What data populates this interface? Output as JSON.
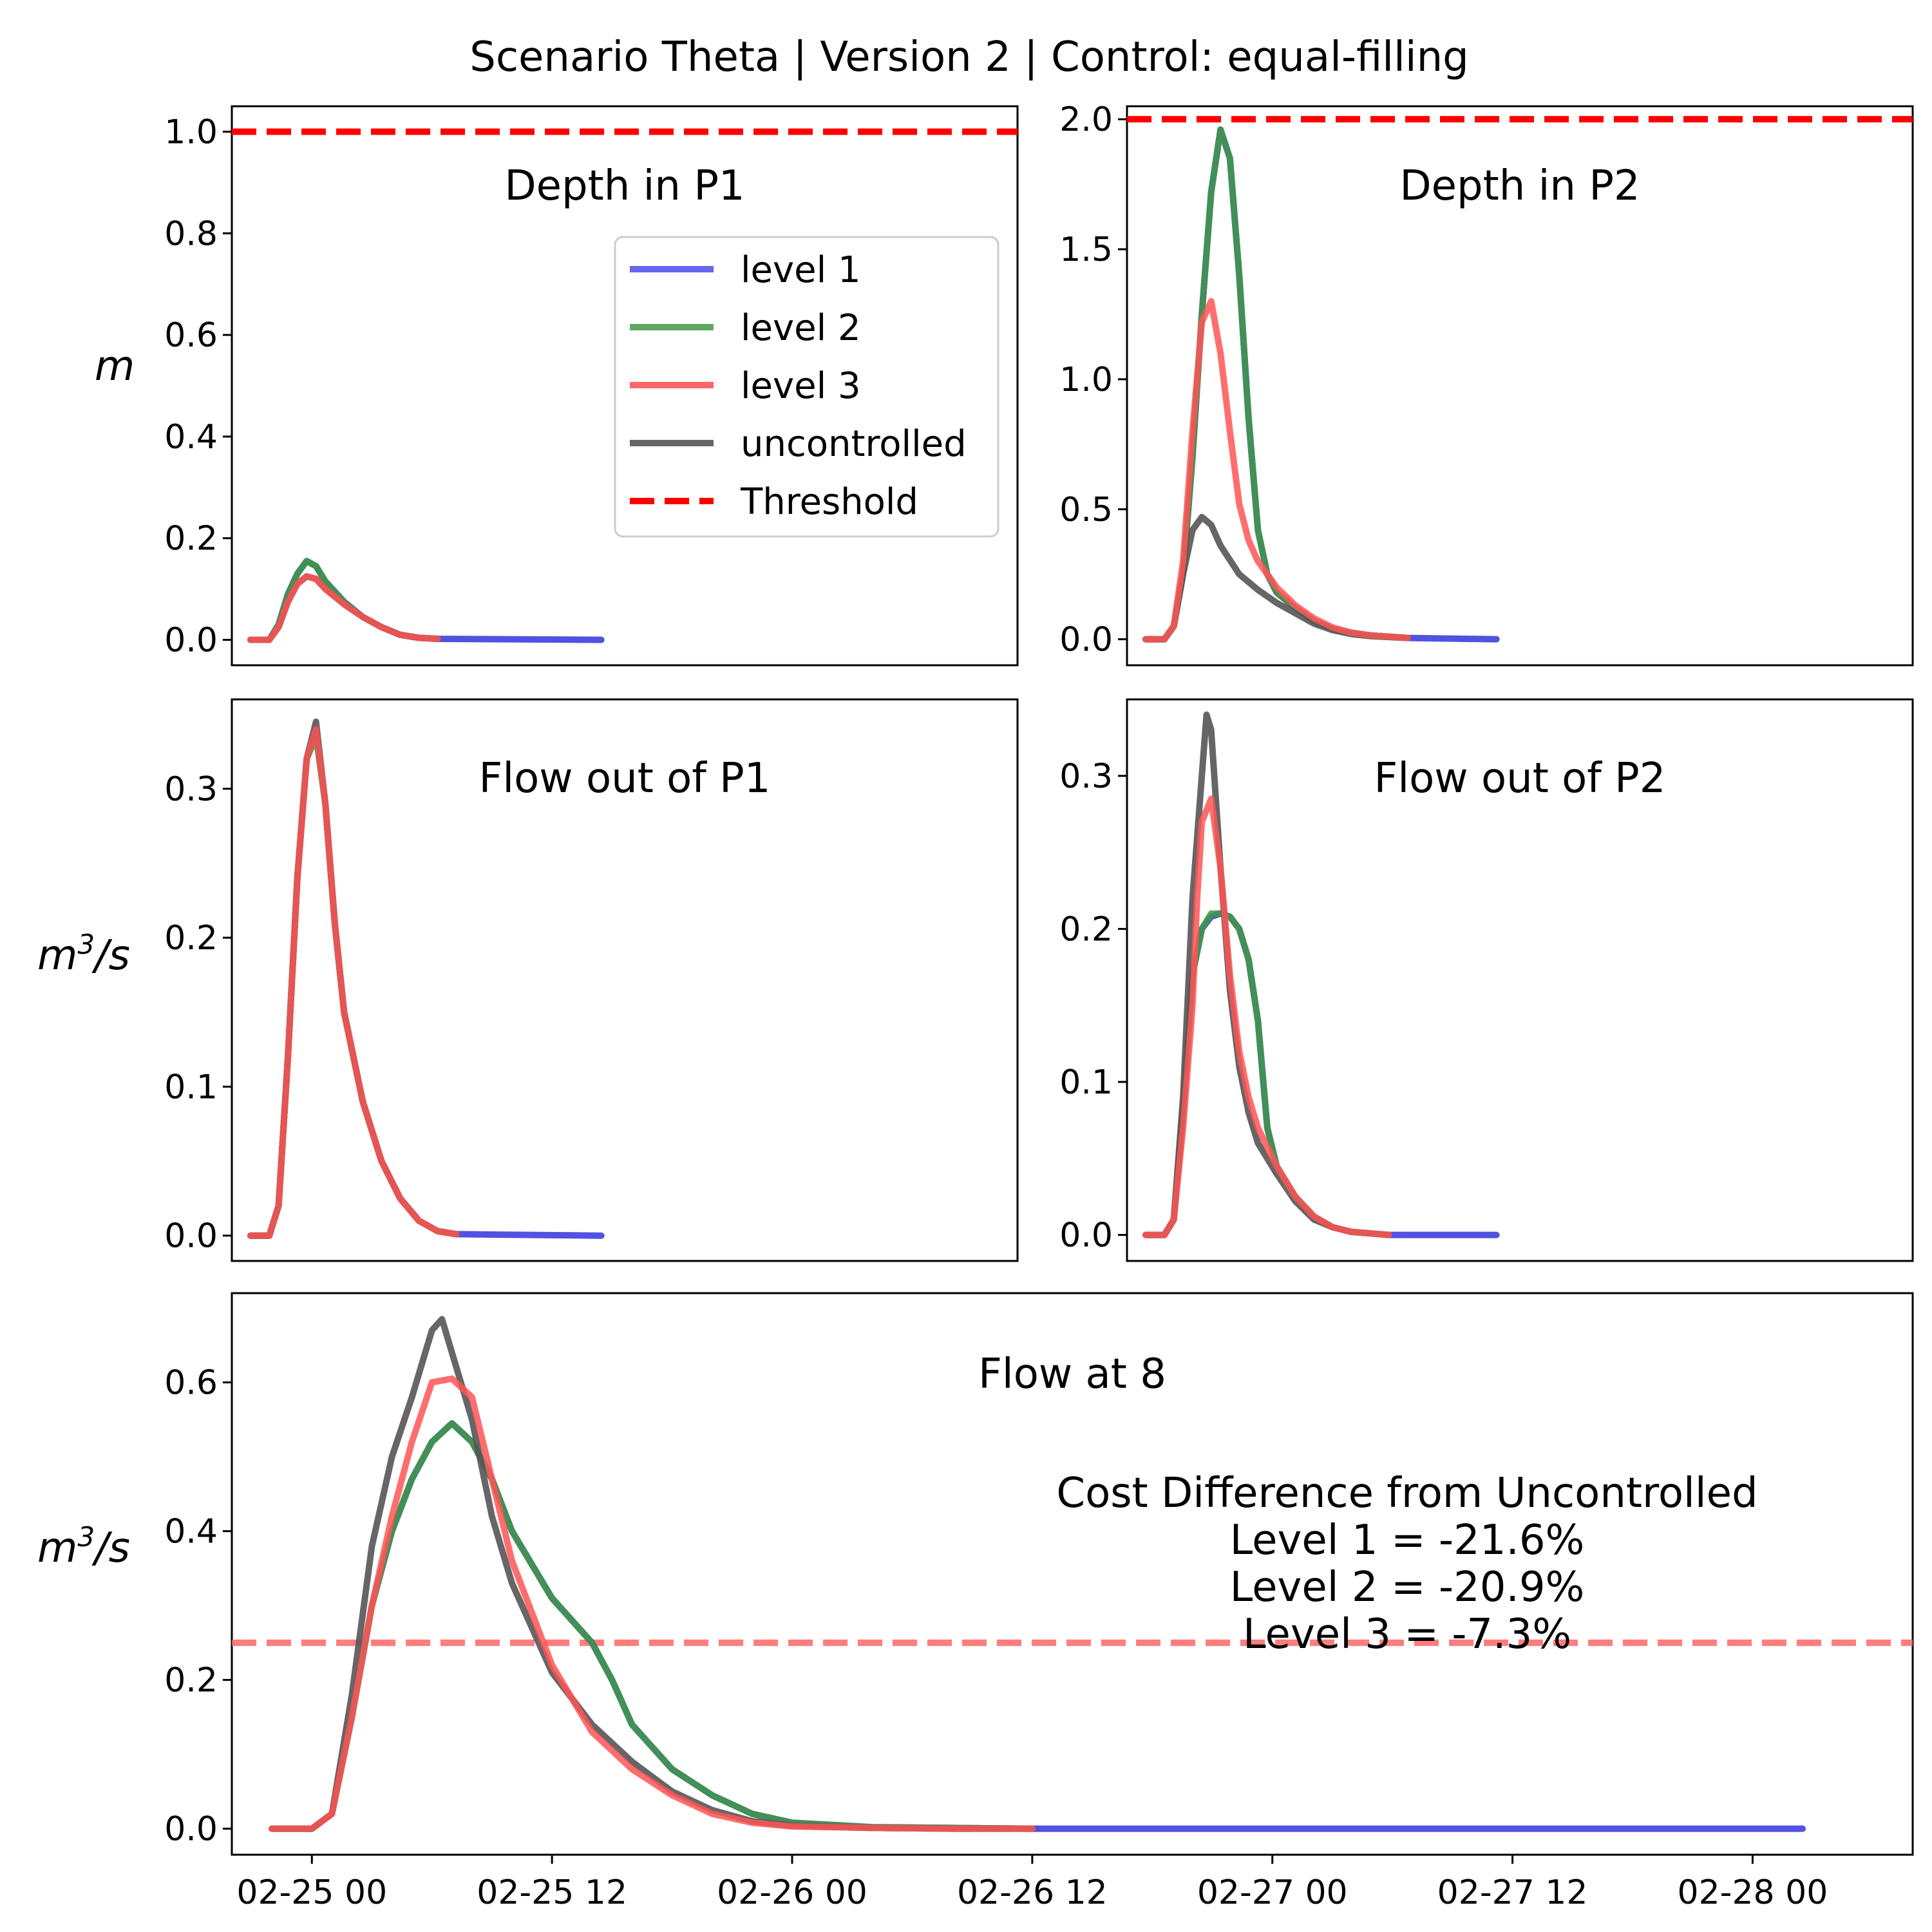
{
  "figure_title": "Scenario Theta | Version 2 | Control: equal-filling",
  "x_axis": {
    "ticks": [
      {
        "t": 0,
        "label": "02-25 00"
      },
      {
        "t": 12,
        "label": "02-25 12"
      },
      {
        "t": 24,
        "label": "02-26 00"
      },
      {
        "t": 36,
        "label": "02-26 12"
      },
      {
        "t": 48,
        "label": "02-27 00"
      },
      {
        "t": 60,
        "label": "02-27 12"
      },
      {
        "t": 72,
        "label": "02-28 00"
      }
    ]
  },
  "legend": {
    "placement": "upper-right of first panel",
    "entries": [
      {
        "label": "level 1",
        "color": "#6666f0",
        "style": "solid"
      },
      {
        "label": "level 2",
        "color": "#5fa95f",
        "style": "solid"
      },
      {
        "label": "level 3",
        "color": "#ff6666",
        "style": "solid"
      },
      {
        "label": "uncontrolled",
        "color": "#666666",
        "style": "solid"
      },
      {
        "label": "Threshold",
        "color": "#ff0000",
        "style": "dashed"
      }
    ]
  },
  "colors": {
    "level1": "#3333dd",
    "level2": "#3f9a3f",
    "level3": "#ff5555",
    "uncontrolled": "#555555",
    "threshold": "#ff0000",
    "flow_threshold": "#ff6666"
  },
  "chart_data": [
    {
      "id": "depth_p1",
      "type": "line",
      "title": "Depth in P1",
      "ylabel": "m",
      "ylim": [
        -0.05,
        1.05
      ],
      "yticks": [
        0.0,
        0.2,
        0.4,
        0.6,
        0.8,
        1.0
      ],
      "tick_format": 1,
      "threshold": 1.0,
      "threshold_color": "#ff0000",
      "x_units": "hours from 02-25 00",
      "xlim": [
        -4,
        80
      ],
      "series": [
        {
          "name": "level 1",
          "color": "#3333dd",
          "x": [
            -2,
            0,
            1,
            2,
            3,
            4,
            5,
            6,
            8,
            10,
            12,
            14,
            16,
            18,
            35.5
          ],
          "y": [
            0,
            0,
            0.03,
            0.09,
            0.13,
            0.155,
            0.145,
            0.115,
            0.075,
            0.045,
            0.025,
            0.01,
            0.004,
            0.002,
            0.0
          ]
        },
        {
          "name": "level 2",
          "color": "#3f9a3f",
          "x": [
            -2,
            0,
            1,
            2,
            3,
            4,
            5,
            6,
            8,
            10,
            12,
            14,
            16,
            18
          ],
          "y": [
            0,
            0,
            0.03,
            0.09,
            0.13,
            0.155,
            0.145,
            0.115,
            0.075,
            0.045,
            0.025,
            0.01,
            0.004,
            0.002
          ]
        },
        {
          "name": "level 3",
          "color": "#ff5555",
          "x": [
            -2,
            0,
            1,
            2,
            3,
            4,
            5,
            6,
            8,
            10,
            12,
            14,
            16,
            18
          ],
          "y": [
            0,
            0,
            0.025,
            0.075,
            0.11,
            0.125,
            0.12,
            0.1,
            0.07,
            0.045,
            0.025,
            0.01,
            0.004,
            0.002
          ]
        },
        {
          "name": "uncontrolled",
          "color": "#555555",
          "x": [
            -2,
            0,
            1,
            2,
            3,
            4,
            5,
            6,
            8,
            10,
            12,
            14,
            16,
            18
          ],
          "y": [
            0,
            0,
            0.025,
            0.075,
            0.11,
            0.125,
            0.12,
            0.1,
            0.07,
            0.045,
            0.025,
            0.01,
            0.004,
            0.002
          ]
        }
      ]
    },
    {
      "id": "depth_p2",
      "type": "line",
      "title": "Depth in P2",
      "ylabel": "",
      "ylim": [
        -0.1,
        2.05
      ],
      "yticks": [
        0.0,
        0.5,
        1.0,
        1.5,
        2.0
      ],
      "tick_format": 1,
      "threshold": 2.0,
      "threshold_color": "#ff0000",
      "x_units": "hours from 02-26 12",
      "xlim": [
        -4,
        80
      ],
      "series": [
        {
          "name": "level 1",
          "color": "#3333dd",
          "x": [
            -2,
            0,
            1,
            2,
            3,
            4,
            5,
            6,
            7,
            8,
            9,
            10,
            11,
            12,
            14,
            16,
            18,
            20,
            22,
            26,
            35.5
          ],
          "y": [
            0,
            0,
            0.05,
            0.25,
            0.7,
            1.25,
            1.72,
            1.96,
            1.85,
            1.4,
            0.85,
            0.42,
            0.25,
            0.18,
            0.12,
            0.07,
            0.04,
            0.025,
            0.015,
            0.005,
            0.0
          ]
        },
        {
          "name": "level 2",
          "color": "#3f9a3f",
          "x": [
            -2,
            0,
            1,
            2,
            3,
            4,
            5,
            6,
            7,
            8,
            9,
            10,
            11,
            12,
            14,
            16,
            18,
            20,
            22,
            26
          ],
          "y": [
            0,
            0,
            0.05,
            0.25,
            0.7,
            1.25,
            1.72,
            1.96,
            1.85,
            1.4,
            0.85,
            0.42,
            0.25,
            0.18,
            0.12,
            0.07,
            0.04,
            0.025,
            0.015,
            0.005
          ]
        },
        {
          "name": "level 3",
          "color": "#ff5555",
          "x": [
            -2,
            0,
            1,
            2,
            3,
            4,
            5,
            6,
            7,
            8,
            9,
            10,
            12,
            14,
            16,
            18,
            20,
            22,
            26
          ],
          "y": [
            0,
            0,
            0.05,
            0.3,
            0.8,
            1.22,
            1.3,
            1.1,
            0.8,
            0.52,
            0.38,
            0.3,
            0.2,
            0.13,
            0.08,
            0.045,
            0.025,
            0.015,
            0.005
          ]
        },
        {
          "name": "uncontrolled",
          "color": "#555555",
          "x": [
            -2,
            0,
            1,
            2,
            3,
            4,
            5,
            6,
            8,
            10,
            12,
            14,
            16,
            18,
            20,
            22,
            26
          ],
          "y": [
            0,
            0,
            0.05,
            0.25,
            0.42,
            0.47,
            0.44,
            0.36,
            0.25,
            0.19,
            0.14,
            0.1,
            0.06,
            0.035,
            0.02,
            0.012,
            0.005
          ]
        }
      ]
    },
    {
      "id": "flow_p1",
      "type": "line",
      "title": "Flow out of P1",
      "ylabel": "m3/s",
      "ylim": [
        -0.017,
        0.36
      ],
      "yticks": [
        0.0,
        0.1,
        0.2,
        0.3
      ],
      "tick_format": 1,
      "x_units": "hours from 02-25 00",
      "xlim": [
        -4,
        80
      ],
      "series": [
        {
          "name": "level 1",
          "color": "#3333dd",
          "x": [
            -2,
            0,
            1,
            2,
            3,
            4,
            5,
            6,
            7,
            8,
            10,
            12,
            14,
            16,
            18,
            20,
            35.5
          ],
          "y": [
            0,
            0,
            0.02,
            0.12,
            0.24,
            0.32,
            0.34,
            0.29,
            0.21,
            0.15,
            0.09,
            0.05,
            0.025,
            0.01,
            0.003,
            0.001,
            0.0
          ]
        },
        {
          "name": "level 2",
          "color": "#3f9a3f",
          "x": [
            -2,
            0,
            1,
            2,
            3,
            4,
            5,
            6,
            7,
            8,
            10,
            12,
            14,
            16,
            18,
            20
          ],
          "y": [
            0,
            0,
            0.02,
            0.12,
            0.24,
            0.32,
            0.335,
            0.29,
            0.21,
            0.15,
            0.09,
            0.05,
            0.025,
            0.01,
            0.003,
            0.001
          ]
        },
        {
          "name": "level 3",
          "color": "#ff5555",
          "x": [
            -2,
            0,
            1,
            2,
            3,
            4,
            5,
            6,
            7,
            8,
            10,
            12,
            14,
            16,
            18,
            20
          ],
          "y": [
            0,
            0,
            0.02,
            0.12,
            0.24,
            0.32,
            0.34,
            0.29,
            0.21,
            0.15,
            0.09,
            0.05,
            0.025,
            0.01,
            0.003,
            0.001
          ]
        },
        {
          "name": "uncontrolled",
          "color": "#555555",
          "x": [
            -2,
            0,
            1,
            2,
            3,
            4,
            5,
            6,
            7,
            8,
            10,
            12,
            14,
            16,
            18,
            20
          ],
          "y": [
            0,
            0,
            0.02,
            0.12,
            0.24,
            0.32,
            0.345,
            0.29,
            0.21,
            0.15,
            0.09,
            0.05,
            0.025,
            0.01,
            0.003,
            0.001
          ]
        }
      ]
    },
    {
      "id": "flow_p2",
      "type": "line",
      "title": "Flow out of P2",
      "ylabel": "",
      "ylim": [
        -0.017,
        0.35
      ],
      "yticks": [
        0.0,
        0.1,
        0.2,
        0.3
      ],
      "tick_format": 1,
      "x_units": "hours from 02-26 12",
      "xlim": [
        -4,
        80
      ],
      "series": [
        {
          "name": "level 1",
          "color": "#3333dd",
          "x": [
            -2,
            0,
            1,
            2,
            3,
            4,
            5,
            6,
            7,
            8,
            9,
            10,
            11,
            12,
            14,
            16,
            18,
            20,
            22,
            24,
            35.5
          ],
          "y": [
            0,
            0,
            0.01,
            0.08,
            0.17,
            0.2,
            0.208,
            0.21,
            0.208,
            0.2,
            0.18,
            0.14,
            0.07,
            0.045,
            0.025,
            0.012,
            0.005,
            0.002,
            0.001,
            0.0,
            0.0
          ]
        },
        {
          "name": "level 2",
          "color": "#3f9a3f",
          "x": [
            -2,
            0,
            1,
            2,
            3,
            4,
            5,
            6,
            7,
            8,
            9,
            10,
            11,
            12,
            14,
            16,
            18,
            20,
            22,
            24
          ],
          "y": [
            0,
            0,
            0.01,
            0.08,
            0.17,
            0.2,
            0.21,
            0.21,
            0.208,
            0.2,
            0.18,
            0.14,
            0.07,
            0.045,
            0.025,
            0.012,
            0.005,
            0.002,
            0.001,
            0.0
          ]
        },
        {
          "name": "level 3",
          "color": "#ff5555",
          "x": [
            -2,
            0,
            1,
            2,
            3,
            3.5,
            4,
            5,
            6,
            7,
            8,
            9,
            10,
            12,
            14,
            16,
            18,
            20,
            22,
            24
          ],
          "y": [
            0,
            0,
            0.01,
            0.07,
            0.15,
            0.22,
            0.27,
            0.285,
            0.24,
            0.17,
            0.12,
            0.09,
            0.07,
            0.045,
            0.025,
            0.012,
            0.005,
            0.002,
            0.001,
            0.0
          ]
        },
        {
          "name": "uncontrolled",
          "color": "#555555",
          "x": [
            -2,
            0,
            1,
            2,
            3,
            4,
            4.5,
            5,
            6,
            7,
            8,
            9,
            10,
            12,
            14,
            16,
            18,
            20,
            22,
            24
          ],
          "y": [
            0,
            0,
            0.01,
            0.09,
            0.22,
            0.3,
            0.34,
            0.33,
            0.24,
            0.16,
            0.11,
            0.08,
            0.06,
            0.04,
            0.022,
            0.01,
            0.005,
            0.002,
            0.001,
            0.0
          ]
        }
      ]
    },
    {
      "id": "flow_8",
      "type": "line",
      "title": "Flow at 8",
      "ylabel": "m3/s",
      "ylim": [
        -0.035,
        0.72
      ],
      "yticks": [
        0.0,
        0.2,
        0.4,
        0.6
      ],
      "tick_format": 1,
      "threshold": 0.25,
      "threshold_color": "#ff6666",
      "x_units": "hours from 02-25 00",
      "xlim": [
        -4,
        80
      ],
      "series": [
        {
          "name": "level 1",
          "color": "#3333dd",
          "x": [
            -2,
            0,
            1,
            2,
            3,
            4,
            5,
            6,
            7,
            8,
            9,
            10,
            12,
            13,
            14,
            15,
            16,
            18,
            20,
            22,
            24,
            28,
            32,
            36,
            74.5
          ],
          "y": [
            0,
            0,
            0.02,
            0.15,
            0.3,
            0.4,
            0.47,
            0.52,
            0.545,
            0.52,
            0.47,
            0.4,
            0.31,
            0.28,
            0.25,
            0.2,
            0.14,
            0.08,
            0.045,
            0.02,
            0.008,
            0.002,
            0.001,
            0.0,
            0.0
          ]
        },
        {
          "name": "level 2",
          "color": "#3f9a3f",
          "x": [
            -2,
            0,
            1,
            2,
            3,
            4,
            5,
            6,
            7,
            8,
            9,
            10,
            12,
            13,
            14,
            15,
            16,
            18,
            20,
            22,
            24,
            28,
            32,
            36
          ],
          "y": [
            0,
            0,
            0.02,
            0.15,
            0.3,
            0.4,
            0.47,
            0.52,
            0.545,
            0.52,
            0.47,
            0.4,
            0.31,
            0.28,
            0.25,
            0.2,
            0.14,
            0.08,
            0.045,
            0.02,
            0.008,
            0.002,
            0.001,
            0.0
          ]
        },
        {
          "name": "level 3",
          "color": "#ff5555",
          "x": [
            -2,
            0,
            1,
            2,
            3,
            4,
            5,
            6,
            7,
            8,
            9,
            10,
            11,
            12,
            14,
            16,
            18,
            20,
            22,
            24,
            28,
            32,
            36
          ],
          "y": [
            0,
            0,
            0.02,
            0.15,
            0.3,
            0.42,
            0.52,
            0.6,
            0.605,
            0.58,
            0.47,
            0.36,
            0.29,
            0.22,
            0.13,
            0.08,
            0.045,
            0.02,
            0.008,
            0.003,
            0.001,
            0.0,
            0.0
          ]
        },
        {
          "name": "uncontrolled",
          "color": "#555555",
          "x": [
            -2,
            0,
            1,
            2,
            3,
            4,
            5,
            6,
            6.5,
            7,
            8,
            9,
            10,
            12,
            14,
            16,
            18,
            20,
            22,
            24,
            28,
            32,
            36
          ],
          "y": [
            0,
            0,
            0.02,
            0.18,
            0.38,
            0.5,
            0.58,
            0.67,
            0.685,
            0.64,
            0.55,
            0.42,
            0.33,
            0.21,
            0.14,
            0.09,
            0.05,
            0.025,
            0.01,
            0.004,
            0.001,
            0.0,
            0.0
          ]
        }
      ]
    }
  ],
  "cost_difference": {
    "title": "Cost Difference from Uncontrolled",
    "lines": [
      "Level 1 = -21.6%",
      "Level 2 = -20.9%",
      "Level 3 = -7.3%"
    ]
  }
}
